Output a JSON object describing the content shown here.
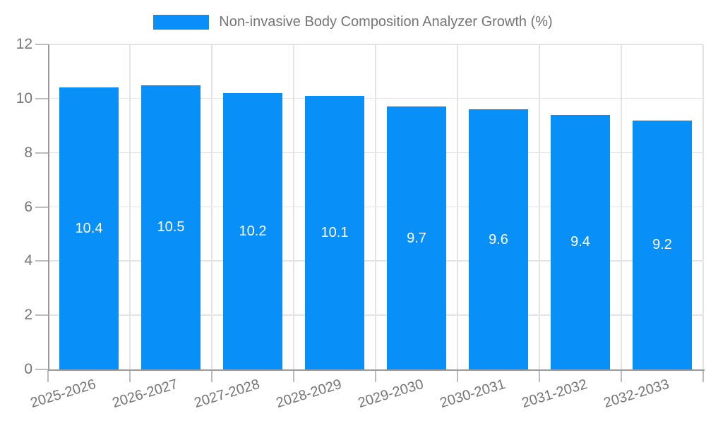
{
  "chart_data": {
    "type": "bar",
    "title": "Non-invasive Body Composition Analyzer Growth (%)",
    "legend": [
      "Non-invasive Body Composition Analyzer Growth (%)"
    ],
    "legend_position": "top-center",
    "categories": [
      "2025-2026",
      "2026-2027",
      "2027-2028",
      "2028-2029",
      "2029-2030",
      "2030-2031",
      "2031-2032",
      "2032-2033"
    ],
    "values": [
      10.4,
      10.5,
      10.2,
      10.1,
      9.7,
      9.6,
      9.4,
      9.2
    ],
    "value_labels": [
      "10.4",
      "10.5",
      "10.2",
      "10.1",
      "9.7",
      "9.6",
      "9.4",
      "9.2"
    ],
    "value_labels_position": "inside-middle",
    "xlabel": "",
    "ylabel": "",
    "ylim": [
      0,
      12
    ],
    "yticks": [
      0,
      2,
      4,
      6,
      8,
      10,
      12
    ],
    "grid": true,
    "colors": {
      "bar": "#0990f8",
      "value_text": "#ffffff",
      "grid": "#e4e4e4",
      "tick": "#bdbdbd",
      "axis": "#9a9a9a",
      "text": "#757575",
      "background": "#ffffff"
    }
  }
}
